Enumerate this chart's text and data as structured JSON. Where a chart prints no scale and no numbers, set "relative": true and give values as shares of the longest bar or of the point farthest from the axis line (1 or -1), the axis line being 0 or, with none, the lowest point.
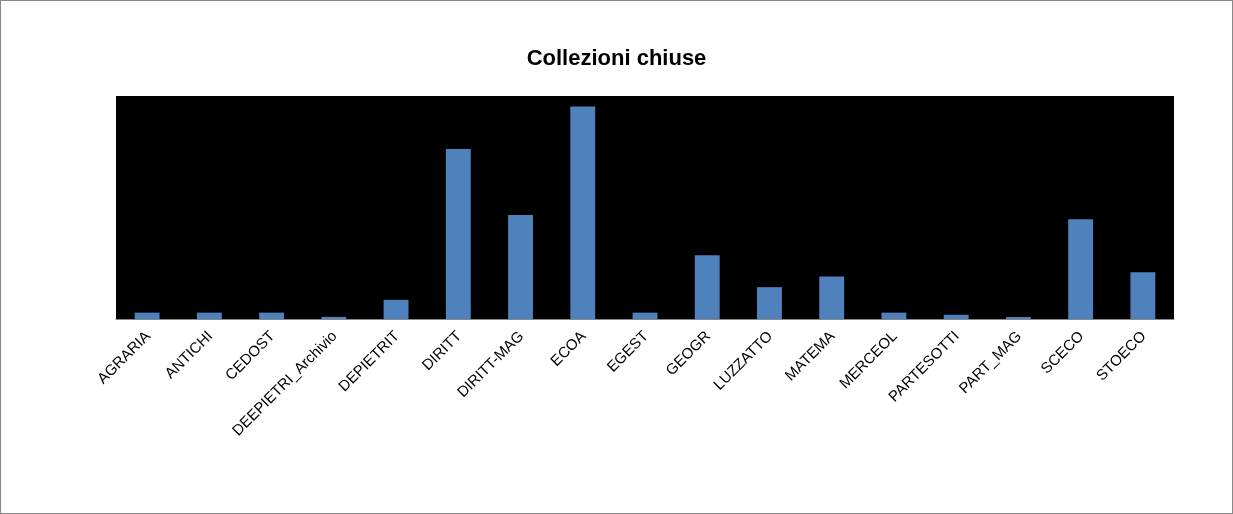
{
  "chart_data": {
    "type": "bar",
    "title": "Collezioni chiuse",
    "relative": true,
    "categories": [
      "AGRARIA",
      "ANTICHI",
      "CEDOST",
      "DEEPIETRI_Archivio",
      "DEPIETRIT",
      "DIRITT",
      "DIRITT-MAG",
      "ECOA",
      "EGEST",
      "GEOGR",
      "LUZZATTO",
      "MATEMA",
      "MERCEOL",
      "PARTESOTTI",
      "PART_MAG",
      "SCECO",
      "STOECO"
    ],
    "values": [
      0.03,
      0.03,
      0.03,
      0.01,
      0.09,
      0.8,
      0.49,
      1,
      0.03,
      0.3,
      0.15,
      0.2,
      0.03,
      0.02,
      0.01,
      0.47,
      0.22
    ],
    "color": "#4f81bd"
  }
}
